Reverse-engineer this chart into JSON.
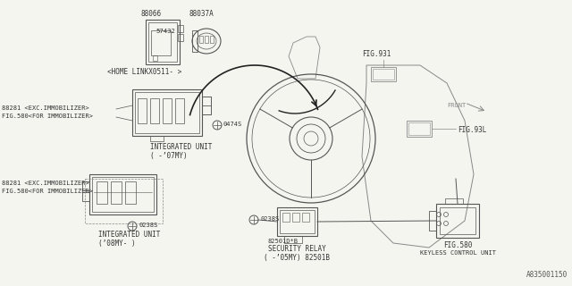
{
  "bg_color": "#f5f5f0",
  "lc": "#555555",
  "lc2": "#888888",
  "tc": "#333333",
  "part_number": "A835001150",
  "fig931_label": "FIG.931",
  "fig93l_label": "FIG.93L",
  "fig580_label": "FIG.580",
  "front_label": "FRONT",
  "label_88066": "88066",
  "label_88037A": "88037A",
  "label_57432": "57432",
  "label_homelink": "<HOME LINKX0511- >",
  "label_88281_1": "88281 <EXC.IMMOBILIZER>",
  "label_88281_2": "FIG.580<FOR IMMOBILIZER>",
  "label_iu07_1": "INTEGRATED UNIT",
  "label_iu07_2": "( -’07MY)",
  "label_0474S": "0474S",
  "label_iu08_1": "INTEGRATED UNIT",
  "label_iu08_2": "(’08MY- )",
  "label_0238S": "0238S",
  "label_sr_1": "SECURITY RELAY",
  "label_sr_2": "( -’05MY) 82501B",
  "label_82501DB": "82501D*B",
  "label_kc_1": "FIG.580",
  "label_kc_2": "KEYLESS CONTROL UNIT"
}
